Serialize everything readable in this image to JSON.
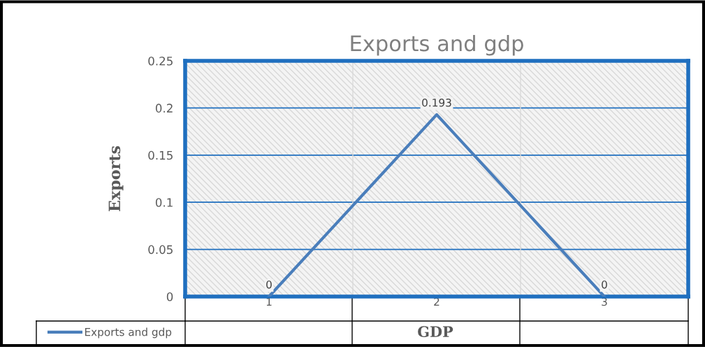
{
  "chart_data": {
    "type": "line",
    "title": "Exports and gdp",
    "xlabel": "GDP",
    "ylabel": "Exports",
    "categories": [
      "1",
      "2",
      "3"
    ],
    "series": [
      {
        "name": "Exports and gdp",
        "color": "#4a7ebb",
        "values": [
          0,
          0.193,
          0
        ]
      }
    ],
    "ylim": [
      0,
      0.25
    ],
    "yticks": [
      0,
      0.05,
      0.1,
      0.15,
      0.2,
      0.25
    ],
    "grid": true,
    "legend": "bottom left",
    "data_labels": true,
    "marker": "none",
    "line_style": "solid"
  }
}
